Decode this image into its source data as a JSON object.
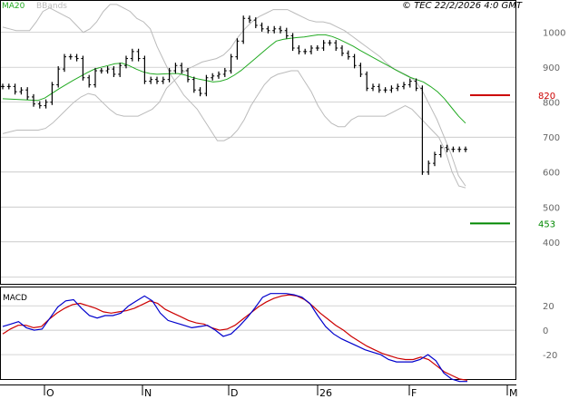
{
  "header": {
    "ma_label": "MA20",
    "bbands_label": "BBands",
    "copyright": "© TEC 22/2/2026 4:0 GMT"
  },
  "macd_panel": {
    "label": "MACD"
  },
  "levels": [
    {
      "value": 820,
      "label": "820",
      "color": "#cc0000"
    },
    {
      "value": 453,
      "label": "453",
      "color": "#008800"
    }
  ],
  "colors": {
    "price": "#000000",
    "ma20": "#22aa22",
    "bbands": "#bbbbbb",
    "macd": "#0000cc",
    "signal": "#cc0000",
    "grid": "#bbbbbb"
  },
  "chart_data": [
    {
      "type": "line",
      "title": "",
      "ylim": [
        280,
        1090
      ],
      "y_ticks": [
        400,
        500,
        600,
        700,
        800,
        900,
        1000
      ],
      "x_ticks": [
        "O",
        "N",
        "D",
        "26",
        "F",
        "M"
      ],
      "series": [
        {
          "name": "price",
          "values": [
            845,
            845,
            830,
            835,
            815,
            795,
            790,
            800,
            850,
            895,
            930,
            930,
            925,
            870,
            850,
            890,
            890,
            895,
            880,
            905,
            925,
            945,
            925,
            860,
            865,
            860,
            865,
            890,
            905,
            890,
            865,
            835,
            825,
            870,
            875,
            880,
            890,
            930,
            975,
            1040,
            1035,
            1020,
            1010,
            1005,
            1010,
            1005,
            990,
            955,
            945,
            945,
            955,
            955,
            970,
            970,
            955,
            940,
            930,
            905,
            880,
            840,
            845,
            835,
            835,
            840,
            845,
            850,
            860,
            840,
            600,
            625,
            650,
            670,
            665,
            665,
            665,
            665
          ]
        },
        {
          "name": "MA20",
          "values": [
            810,
            809,
            808,
            807,
            806,
            805,
            812,
            825,
            838,
            850,
            862,
            873,
            884,
            894,
            900,
            905,
            910,
            912,
            905,
            895,
            887,
            882,
            880,
            881,
            882,
            882,
            878,
            871,
            866,
            862,
            858,
            860,
            866,
            877,
            891,
            908,
            925,
            942,
            959,
            975,
            980,
            983,
            985,
            987,
            990,
            993,
            993,
            988,
            980,
            970,
            960,
            948,
            937,
            926,
            915,
            904,
            893,
            882,
            872,
            865,
            858,
            845,
            830,
            810,
            785,
            760,
            740
          ]
        },
        {
          "name": "BBands",
          "values": [
            1015,
            1010,
            1005,
            1005,
            1005,
            1030,
            1060,
            1070,
            1060,
            1050,
            1040,
            1020,
            1000,
            1010,
            1030,
            1060,
            1080,
            1080,
            1070,
            1060,
            1040,
            1030,
            1010,
            960,
            920,
            880,
            850,
            820,
            800,
            780,
            750,
            720,
            690,
            690,
            700,
            720,
            750,
            790,
            820,
            850,
            870,
            880,
            885,
            890,
            890,
            860,
            830,
            790,
            760,
            740,
            730,
            730,
            750,
            760,
            760,
            760,
            760,
            760,
            770,
            780,
            790,
            780,
            760,
            740,
            720,
            700,
            660,
            600,
            560,
            555
          ]
        },
        {
          "name": "BBands",
          "values": [
            710,
            715,
            720,
            720,
            720,
            720,
            725,
            740,
            760,
            780,
            800,
            815,
            825,
            820,
            800,
            780,
            765,
            760,
            760,
            760,
            770,
            780,
            800,
            840,
            860,
            880,
            895,
            905,
            915,
            920,
            925,
            935,
            955,
            985,
            1010,
            1030,
            1045,
            1055,
            1065,
            1065,
            1065,
            1055,
            1045,
            1035,
            1030,
            1030,
            1025,
            1015,
            1005,
            990,
            975,
            960,
            945,
            930,
            910,
            895,
            885,
            875,
            860,
            830,
            790,
            750,
            700,
            650,
            590,
            560
          ]
        }
      ]
    },
    {
      "type": "line",
      "title": "MACD",
      "ylim": [
        -40,
        35
      ],
      "y_ticks": [
        -20,
        0,
        20
      ],
      "series": [
        {
          "name": "MACD",
          "values": [
            3,
            5,
            7,
            2,
            0,
            1,
            10,
            19,
            24,
            25,
            18,
            12,
            10,
            12,
            12,
            14,
            20,
            24,
            28,
            24,
            14,
            8,
            6,
            4,
            2,
            3,
            4,
            0,
            -5,
            -3,
            3,
            10,
            18,
            27,
            30,
            30,
            30,
            29,
            27,
            22,
            12,
            3,
            -3,
            -7,
            -10,
            -13,
            -16,
            -18,
            -20,
            -24,
            -26,
            -26,
            -26,
            -24,
            -20,
            -25,
            -35,
            -40,
            -42,
            -42
          ]
        },
        {
          "name": "Signal",
          "values": [
            -3,
            1,
            4,
            4,
            2,
            3,
            9,
            14,
            18,
            21,
            22,
            20,
            18,
            15,
            14,
            15,
            16,
            18,
            21,
            24,
            22,
            17,
            14,
            11,
            8,
            6,
            5,
            2,
            0,
            1,
            4,
            9,
            14,
            19,
            23,
            26,
            28,
            29,
            28,
            25,
            20,
            14,
            9,
            4,
            0,
            -5,
            -9,
            -13,
            -16,
            -19,
            -21,
            -23,
            -24,
            -24,
            -22,
            -24,
            -29,
            -34,
            -37,
            -40,
            -41
          ]
        }
      ]
    }
  ]
}
